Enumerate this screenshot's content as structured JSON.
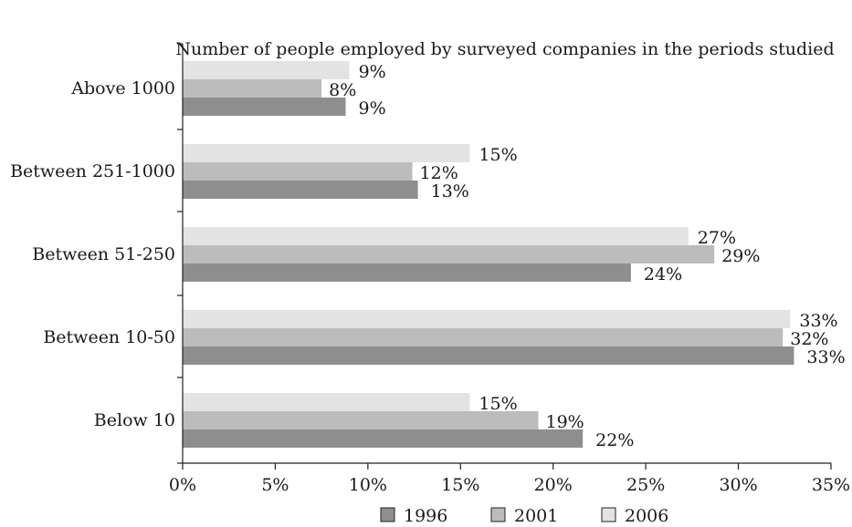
{
  "chart_data": {
    "type": "bar",
    "orientation": "horizontal",
    "title": "Number of people employed by surveyed companies in the periods studied",
    "categories": [
      "Above 1000",
      "Between 251-1000",
      "Between 51-250",
      "Between 10-50",
      "Below 10"
    ],
    "series": [
      {
        "name": "2006",
        "values": [
          9,
          15.5,
          27.3,
          32.8,
          15.5
        ],
        "labels": [
          "9%",
          "15%",
          "27%",
          "33%",
          "15%"
        ],
        "color": "#e3e3e3"
      },
      {
        "name": "2001",
        "values": [
          7.5,
          12.4,
          28.7,
          32.4,
          19.2
        ],
        "labels": [
          "8%",
          "12%",
          "29%",
          "32%",
          "19%"
        ],
        "color": "#bcbcbc"
      },
      {
        "name": "1996",
        "values": [
          8.8,
          12.7,
          24.2,
          33,
          21.6
        ],
        "labels": [
          "9%",
          "13%",
          "24%",
          "33%",
          "22%"
        ],
        "color": "#8e8e8e"
      }
    ],
    "xlim": [
      0,
      35
    ],
    "xticks": [
      0,
      5,
      10,
      15,
      20,
      25,
      30,
      35
    ],
    "xtick_labels": [
      "0%",
      "5%",
      "10%",
      "15%",
      "20%",
      "25%",
      "30%",
      "35%"
    ],
    "legend": {
      "placement": "bottom",
      "order": [
        "1996",
        "2001",
        "2006"
      ]
    },
    "grid": false
  }
}
